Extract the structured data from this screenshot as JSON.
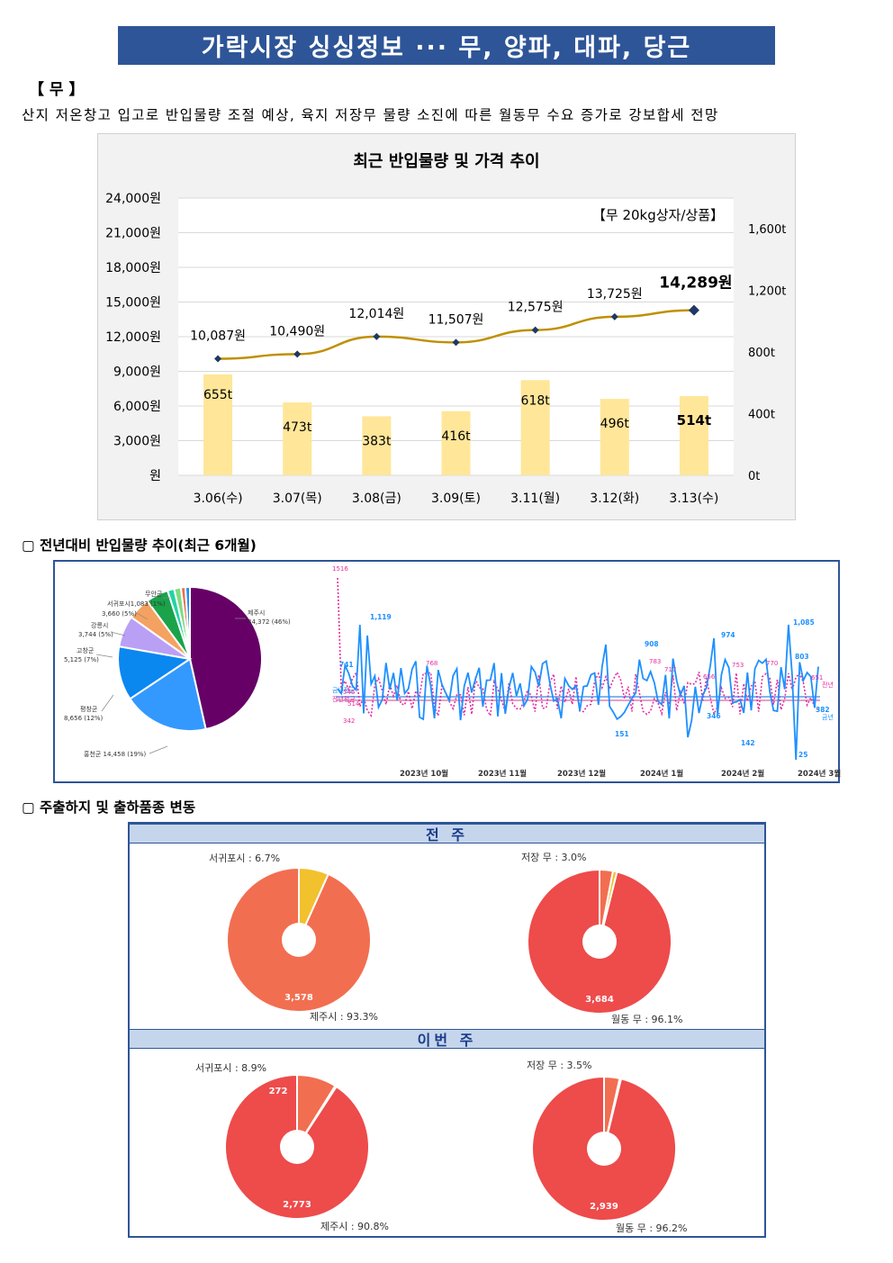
{
  "title": "가락시장 싱싱정보 ··· 무, 양파, 대파, 당근",
  "section": {
    "label": "【 무 】",
    "summary": "산지 저온창고 입고로 반입물량 조절 예상, 육지 저장무 물량 소진에 따른 월동무 수요 증가로 강보합세 전망"
  },
  "chart1": {
    "title": "최근 반입물량 및 가격 추이",
    "unit_note": "【무 20kg상자/상품】",
    "chart_data": {
      "type": "bar+line",
      "categories": [
        "3.06(수)",
        "3.07(목)",
        "3.08(금)",
        "3.09(토)",
        "3.11(월)",
        "3.12(화)",
        "3.13(수)"
      ],
      "series": [
        {
          "name": "",
          "type": "bar",
          "axis": "right",
          "values": [
            655,
            473,
            383,
            416,
            618,
            496,
            514
          ],
          "labels": [
            "655t",
            "473t",
            "383t",
            "416t",
            "618t",
            "496t",
            "514t"
          ]
        },
        {
          "name": "",
          "type": "line",
          "axis": "left",
          "values": [
            10087,
            10490,
            12014,
            11507,
            12575,
            13725,
            14289
          ],
          "labels": [
            "10,087원",
            "10,490원",
            "12,014원",
            "11,507원",
            "12,575원",
            "13,725원",
            "14,289원"
          ]
        }
      ],
      "left_axis": {
        "ticks": [
          "원",
          "3,000원",
          "6,000원",
          "9,000원",
          "12,000원",
          "15,000원",
          "18,000원",
          "21,000원",
          "24,000원"
        ],
        "ylim": [
          0,
          24000
        ]
      },
      "right_axis": {
        "ticks": [
          "0t",
          "400t",
          "800t",
          "1,200t",
          "1,600t"
        ],
        "ylim": [
          0,
          1800
        ]
      },
      "colors": {
        "bar": "#ffe699",
        "line": "#bf9000",
        "marker": "#1f3864"
      }
    }
  },
  "section2": {
    "label": "▢  전년대비 반입물량 추이(최근 6개월)"
  },
  "chart2": {
    "pie": {
      "type": "pie",
      "slices": [
        {
          "label": "제주시",
          "value_text": "34,372 (46%)",
          "value": 46,
          "color": "#660066"
        },
        {
          "label": "홍천군",
          "value_text": "14,458 (19%)",
          "value": 19,
          "color": "#3399ff"
        },
        {
          "label": "평창군",
          "value_text": "8,656 (12%)",
          "value": 12,
          "color": "#0b87f0"
        },
        {
          "label": "고창군",
          "value_text": "5,125 (7%)",
          "value": 7,
          "color": "#b9a0f5"
        },
        {
          "label": "강릉시",
          "value_text": "3,744 (5%)",
          "value": 5,
          "color": "#f4a261"
        },
        {
          "label": "",
          "value_text": "3,660 (5%)",
          "value": 5,
          "color": "#1aa34a"
        },
        {
          "label": "서귀포시",
          "value_text": "1,083 (1%)",
          "value": 1.5,
          "color": "#22d3a5"
        },
        {
          "label": "무안군",
          "value_text": "",
          "value": 1.5,
          "color": "#7fdc7f"
        },
        {
          "label": "",
          "value_text": "",
          "value": 1,
          "color": "#e76f51"
        },
        {
          "label": "",
          "value_text": "",
          "value": 1,
          "color": "#1e90ff"
        }
      ]
    },
    "line": {
      "type": "line",
      "x_labels": [
        "2023년 10월",
        "2023년 11월",
        "2023년 12월",
        "2024년 1월",
        "2024년 2월",
        "2024년 3월"
      ],
      "series_names": [
        "금년",
        "전년"
      ],
      "avg_labels": [
        "금년평균",
        "전년평균"
      ],
      "annotations_cur": [
        "741",
        "1,119",
        "908",
        "974",
        "1,085",
        "803",
        "382",
        "25",
        "142",
        "151",
        "346"
      ],
      "annotations_prev": [
        "1516",
        "768",
        "783",
        "717",
        "656",
        "753",
        "770",
        "651",
        "546",
        "514",
        "342"
      ],
      "colors": {
        "current": "#1e90ff",
        "previous": "#e62ea0"
      }
    }
  },
  "section3": {
    "label": "▢  주출하지 및 출하품종 변동"
  },
  "chart3": {
    "last_week": {
      "header": "전 주",
      "left": {
        "type": "pie",
        "slices": [
          {
            "label": "제주시 : 93.3%",
            "value": 93.3,
            "value_text": "3,578",
            "color": "#f26e50"
          },
          {
            "label": "서귀포시 : 6.7%",
            "value": 6.7,
            "value_text": "",
            "color": "#f2c12e"
          }
        ]
      },
      "right": {
        "type": "pie",
        "slices": [
          {
            "label": "월동 무 : 96.1%",
            "value": 96.1,
            "value_text": "3,684",
            "color": "#ee4b4b"
          },
          {
            "label": "저장 무 : 3.0%",
            "value": 3.0,
            "value_text": "",
            "color": "#f26e50"
          },
          {
            "label": "",
            "value": 0.9,
            "value_text": "",
            "color": "#f2c12e"
          }
        ]
      }
    },
    "this_week": {
      "header": "이번 주",
      "left": {
        "type": "pie",
        "slices": [
          {
            "label": "제주시 : 90.8%",
            "value": 90.8,
            "value_text": "2,773",
            "color": "#ee4b4b"
          },
          {
            "label": "서귀포시 : 8.9%",
            "value": 8.9,
            "value_text": "272",
            "color": "#f26e50"
          },
          {
            "label": "",
            "value": 0.3,
            "value_text": "",
            "color": "#f2c12e"
          }
        ]
      },
      "right": {
        "type": "pie",
        "slices": [
          {
            "label": "월동 무 : 96.2%",
            "value": 96.2,
            "value_text": "2,939",
            "color": "#ee4b4b"
          },
          {
            "label": "저장 무 : 3.5%",
            "value": 3.5,
            "value_text": "",
            "color": "#f26e50"
          },
          {
            "label": "",
            "value": 0.3,
            "value_text": "",
            "color": "#f2c12e"
          }
        ]
      }
    }
  }
}
